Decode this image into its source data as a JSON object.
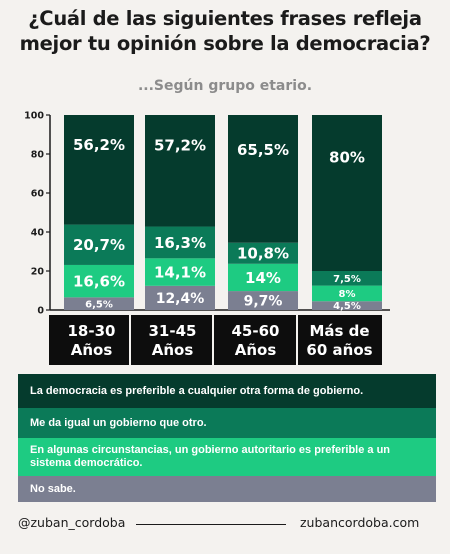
{
  "title_line1": "¿Cuál de las siguientes frases refleja",
  "title_line2": "mejor tu opinión sobre la democracia?",
  "subtitle": "...Según grupo etario.",
  "colors": {
    "dark": "#053b2d",
    "medium": "#0b7a58",
    "bright": "#1ecb82",
    "gray": "#7b7f91",
    "label_bg": "#0d0d0d"
  },
  "chart_data": {
    "type": "bar",
    "stacked": true,
    "categories": [
      "18-30 Años",
      "31-45 Años",
      "45-60 Años",
      "Más de 60 años"
    ],
    "category_lines": [
      [
        "18-30",
        "Años"
      ],
      [
        "31-45",
        "Años"
      ],
      [
        "45-60",
        "Años"
      ],
      [
        "Más de",
        "60 años"
      ]
    ],
    "ylim": [
      0,
      100
    ],
    "yticks": [
      0,
      20,
      40,
      60,
      80,
      100
    ],
    "grid": false,
    "legend_position": "bottom",
    "series": [
      {
        "name": "No sabe.",
        "color": "#7b7f91",
        "values": [
          6.5,
          12.4,
          9.7,
          4.5
        ],
        "labels": [
          "6,5%",
          "12,4%",
          "9,7%",
          "4,5%"
        ]
      },
      {
        "name": "En algunas circunstancias, un gobierno autoritario es preferible a un sistema democrático.",
        "color": "#1ecb82",
        "values": [
          16.6,
          14.1,
          14,
          8
        ],
        "labels": [
          "16,6%",
          "14,1%",
          "14%",
          "8%"
        ]
      },
      {
        "name": "Me da igual un gobierno que otro.",
        "color": "#0b7a58",
        "values": [
          20.7,
          16.3,
          10.8,
          7.5
        ],
        "labels": [
          "20,7%",
          "16,3%",
          "10,8%",
          "7,5%"
        ]
      },
      {
        "name": "La democracia es preferible a  cualquier otra forma de gobierno.",
        "color": "#053b2d",
        "values": [
          56.2,
          57.2,
          65.5,
          80
        ],
        "labels": [
          "56,2%",
          "57,2%",
          "65,5%",
          "80%"
        ]
      }
    ]
  },
  "legend": [
    {
      "text": "La democracia es preferible a  cualquier otra forma de gobierno.",
      "color": "#053b2d"
    },
    {
      "text": "Me da igual un gobierno que otro.",
      "color": "#0b7a58"
    },
    {
      "text": "En algunas circunstancias, un gobierno autoritario es preferible a un sistema democrático.",
      "color": "#1ecb82"
    },
    {
      "text": "No sabe.",
      "color": "#7b7f91"
    }
  ],
  "footer": {
    "handle": "@zuban_cordoba",
    "site": "zubancordoba.com"
  }
}
